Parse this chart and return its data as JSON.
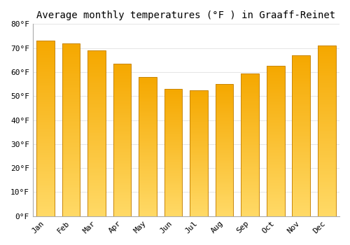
{
  "title": "Average monthly temperatures (°F ) in Graaff-Reinet",
  "months": [
    "Jan",
    "Feb",
    "Mar",
    "Apr",
    "May",
    "Jun",
    "Jul",
    "Aug",
    "Sep",
    "Oct",
    "Nov",
    "Dec"
  ],
  "values": [
    73,
    72,
    69,
    63.5,
    58,
    53,
    52.5,
    55,
    59.5,
    62.5,
    67,
    71
  ],
  "bar_color_dark": "#F5A800",
  "bar_color_light": "#FFD966",
  "edge_color": "#C8860A",
  "background_color": "#FFFFFF",
  "grid_color": "#E0E0E0",
  "ylim": [
    0,
    80
  ],
  "yticks": [
    0,
    10,
    20,
    30,
    40,
    50,
    60,
    70,
    80
  ],
  "ylabel_suffix": "°F",
  "title_fontsize": 10,
  "tick_fontsize": 8,
  "font_family": "monospace",
  "bar_width": 0.7,
  "gradient_steps": 100
}
